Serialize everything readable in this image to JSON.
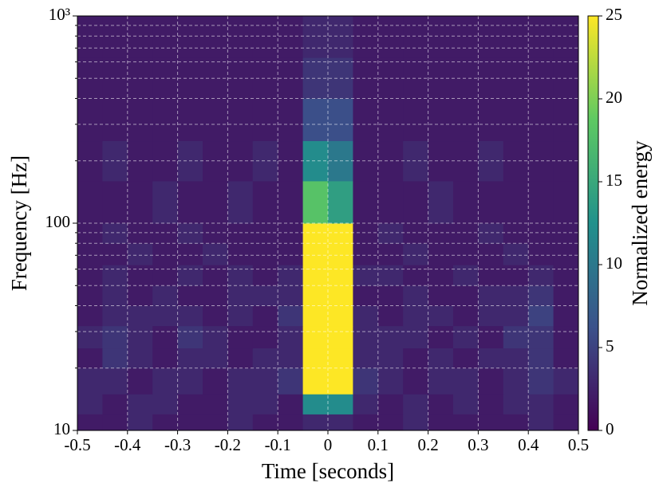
{
  "chart_data": {
    "type": "heatmap",
    "xlabel": "Time [seconds]",
    "ylabel": "Frequency [Hz]",
    "colorbar_label": "Normalized energy",
    "xlim": [
      -0.5,
      0.5
    ],
    "xticks": [
      -0.5,
      -0.4,
      -0.3,
      -0.2,
      -0.1,
      0,
      0.1,
      0.2,
      0.3,
      0.4,
      0.5
    ],
    "ylim": [
      10,
      1000
    ],
    "log_y": true,
    "yticks": [
      10,
      100,
      {
        "value": 1000,
        "label": "10³"
      }
    ],
    "yminorticks": [
      20,
      30,
      40,
      50,
      60,
      70,
      80,
      90,
      200,
      300,
      400,
      500,
      600,
      700,
      800,
      900
    ],
    "grid": true,
    "clim": [
      0,
      25
    ],
    "cticks": [
      0,
      5,
      10,
      15,
      20,
      25
    ],
    "colormap": [
      "#440154",
      "#3b528b",
      "#21918c",
      "#5ec962",
      "#fde725"
    ],
    "xbins": [
      -0.5,
      -0.45,
      -0.4,
      -0.35,
      -0.3,
      -0.25,
      -0.2,
      -0.15,
      -0.1,
      -0.05,
      0,
      0.05,
      0.1,
      0.15,
      0.2,
      0.25,
      0.3,
      0.35,
      0.4,
      0.45,
      0.5
    ],
    "ybins": [
      10,
      12,
      15,
      20,
      25,
      32,
      40,
      50,
      63,
      80,
      100,
      160,
      250,
      400,
      630,
      1000
    ],
    "values": [
      [
        2,
        2,
        3,
        2,
        2,
        2,
        3,
        2,
        2,
        3,
        3,
        2,
        2,
        3,
        2,
        2,
        2,
        2,
        3,
        2
      ],
      [
        3,
        2,
        3,
        3,
        2,
        2,
        3,
        3,
        2,
        12,
        12,
        3,
        2,
        3,
        2,
        3,
        2,
        3,
        3,
        2
      ],
      [
        3,
        3,
        2,
        3,
        3,
        2,
        3,
        3,
        4,
        25,
        25,
        4,
        3,
        2,
        3,
        3,
        2,
        3,
        4,
        3
      ],
      [
        2,
        4,
        3,
        2,
        3,
        3,
        2,
        3,
        3,
        25,
        25,
        3,
        3,
        2,
        3,
        2,
        3,
        3,
        4,
        2
      ],
      [
        3,
        4,
        3,
        2,
        4,
        3,
        2,
        2,
        3,
        25,
        25,
        3,
        3,
        3,
        2,
        3,
        2,
        4,
        4,
        2
      ],
      [
        2,
        3,
        3,
        3,
        3,
        2,
        3,
        2,
        4,
        25,
        25,
        3,
        2,
        3,
        3,
        2,
        3,
        3,
        5,
        2
      ],
      [
        2,
        3,
        2,
        3,
        2,
        2,
        3,
        3,
        3,
        25,
        25,
        2,
        2,
        3,
        2,
        2,
        3,
        3,
        4,
        2
      ],
      [
        2,
        3,
        2,
        2,
        3,
        2,
        3,
        2,
        3,
        25,
        25,
        3,
        3,
        2,
        2,
        3,
        2,
        2,
        3,
        2
      ],
      [
        2,
        2,
        3,
        2,
        2,
        3,
        2,
        2,
        2,
        25,
        25,
        2,
        2,
        3,
        2,
        2,
        2,
        3,
        2,
        2
      ],
      [
        2,
        3,
        2,
        2,
        3,
        2,
        2,
        2,
        2,
        25,
        25,
        2,
        3,
        2,
        2,
        2,
        3,
        2,
        2,
        2
      ],
      [
        2,
        2,
        2,
        3,
        2,
        2,
        3,
        2,
        2,
        18,
        14,
        2,
        2,
        2,
        3,
        2,
        2,
        2,
        2,
        2
      ],
      [
        2,
        3,
        2,
        2,
        3,
        2,
        2,
        3,
        2,
        12,
        10,
        2,
        2,
        3,
        2,
        2,
        3,
        2,
        2,
        2
      ],
      [
        2,
        2,
        2,
        2,
        2,
        2,
        2,
        2,
        2,
        6,
        6,
        2,
        2,
        2,
        2,
        2,
        2,
        2,
        2,
        2
      ],
      [
        2,
        2,
        2,
        2,
        2,
        2,
        2,
        2,
        2,
        4,
        4,
        2,
        2,
        2,
        2,
        2,
        2,
        2,
        2,
        2
      ],
      [
        2,
        2,
        2,
        2,
        2,
        2,
        2,
        2,
        2,
        3,
        3,
        2,
        2,
        2,
        2,
        2,
        2,
        2,
        2,
        2
      ]
    ]
  }
}
